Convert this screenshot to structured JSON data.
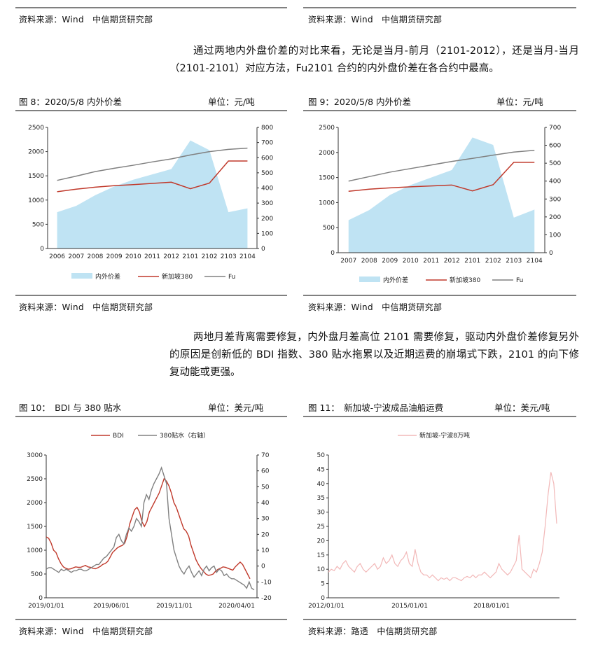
{
  "top_sources": {
    "left": "资料来源：Wind　中信期货研究部",
    "right": "资料来源：Wind　中信期货研究部"
  },
  "paragraph1": "通过两地内外盘价差的对比来看，无论是当月-前月（2101-2012），还是当月-当月（2101-2101）对应方法，Fu2101 合约的内外盘价差在各合约中最高。",
  "fig8": {
    "title": "图 8：2020/5/8 内外价差",
    "unit": "单位：元/吨",
    "source": "资料来源：Wind　中信期货研究部"
  },
  "fig9": {
    "title": "图 9：2020/5/8 内外价差",
    "unit": "单位：元/吨",
    "source": "资料来源：Wind　中信期货研究部"
  },
  "paragraph2": "两地月差背离需要修复，内外盘月差高位 2101 需要修复，驱动内外盘价差修复另外的原因是创新低的 BDI 指数、380 贴水拖累以及近期运费的崩塌式下跌，2101 的向下修复动能或更强。",
  "fig10": {
    "title": "图 10：　BDI 与 380 贴水",
    "unit": "单位：美元/吨",
    "source": "资料来源：Wind　中信期货研究部"
  },
  "fig11": {
    "title": "图 11：　新加坡-宁波成品油船运费",
    "unit": "单位：美元/吨",
    "source": "资料来源：路透　中信期货研究部"
  },
  "chart_data": [
    {
      "id": "fig8",
      "type": "area+line",
      "categories": [
        "2006",
        "2007",
        "2008",
        "2009",
        "2010",
        "2011",
        "2012",
        "2101",
        "2102",
        "2103",
        "2104"
      ],
      "series": [
        {
          "name": "内外价差",
          "axis": "left",
          "kind": "area",
          "color": "#bfe3f3",
          "values": [
            750,
            880,
            1100,
            1280,
            1420,
            1530,
            1640,
            2230,
            2030,
            750,
            830
          ]
        },
        {
          "name": "新加坡380",
          "axis": "right",
          "kind": "line",
          "color": "#c0392b",
          "values": [
            375,
            392,
            405,
            415,
            422,
            430,
            438,
            395,
            432,
            578,
            578
          ]
        },
        {
          "name": "Fu",
          "axis": "right",
          "kind": "line",
          "color": "#808080",
          "values": [
            450,
            478,
            508,
            530,
            550,
            572,
            592,
            618,
            640,
            655,
            663
          ]
        }
      ],
      "ylim_left": [
        0,
        2500
      ],
      "yticks_left": [
        0,
        500,
        1000,
        1500,
        2000,
        2500
      ],
      "ylim_right": [
        0,
        800
      ],
      "yticks_right": [
        0,
        100,
        200,
        300,
        400,
        500,
        600,
        700,
        800
      ],
      "legend": [
        "内外价差",
        "新加坡380",
        "Fu"
      ]
    },
    {
      "id": "fig9",
      "type": "area+line",
      "categories": [
        "2007",
        "2008",
        "2009",
        "2010",
        "2011",
        "2012",
        "2101",
        "2102",
        "2103",
        "2104"
      ],
      "series": [
        {
          "name": "内外价差",
          "axis": "left",
          "kind": "area",
          "color": "#bfe3f3",
          "values": [
            650,
            850,
            1150,
            1350,
            1500,
            1650,
            2300,
            2150,
            700,
            860
          ]
        },
        {
          "name": "新加坡380",
          "axis": "right",
          "kind": "line",
          "color": "#c0392b",
          "values": [
            343,
            355,
            362,
            368,
            373,
            378,
            345,
            380,
            505,
            505
          ]
        },
        {
          "name": "Fu",
          "axis": "right",
          "kind": "line",
          "color": "#808080",
          "values": [
            400,
            425,
            450,
            470,
            490,
            510,
            527,
            545,
            562,
            572
          ]
        }
      ],
      "ylim_left": [
        0,
        2500
      ],
      "yticks_left": [
        0,
        500,
        1000,
        1500,
        2000,
        2500
      ],
      "ylim_right": [
        0,
        700
      ],
      "yticks_right": [
        0,
        100,
        200,
        300,
        400,
        500,
        600,
        700
      ],
      "legend": [
        "内外价差",
        "新加坡380",
        "Fu"
      ]
    },
    {
      "id": "fig10",
      "type": "line",
      "x_ticks": [
        "2019/01/01",
        "2019/06/01",
        "2019/11/01",
        "2020/04/01"
      ],
      "series": [
        {
          "name": "BDI",
          "axis": "left",
          "color": "#c0392b",
          "values": [
            1280,
            1250,
            1150,
            1000,
            950,
            820,
            720,
            650,
            620,
            600,
            610,
            630,
            650,
            640,
            640,
            660,
            680,
            650,
            640,
            620,
            610,
            630,
            660,
            700,
            720,
            760,
            850,
            950,
            1000,
            1050,
            1080,
            1100,
            1150,
            1300,
            1550,
            1700,
            1850,
            1900,
            1800,
            1600,
            1500,
            1600,
            1800,
            1900,
            2000,
            2100,
            2200,
            2350,
            2500,
            2450,
            2350,
            2200,
            2000,
            1900,
            1750,
            1600,
            1450,
            1400,
            1300,
            1100,
            950,
            800,
            700,
            620,
            560,
            500,
            470,
            480,
            500,
            560,
            600,
            620,
            650,
            640,
            620,
            600,
            580,
            650,
            700,
            750,
            700,
            600,
            500,
            400
          ]
        },
        {
          "name": "380贴水（右轴）",
          "axis": "right",
          "color": "#808080",
          "values": [
            -2,
            -1,
            -1,
            -2,
            -3,
            -4,
            -2,
            -3,
            -2,
            -3,
            -4,
            -3,
            -3,
            -2,
            -2,
            -3,
            -3,
            -2,
            -1,
            0,
            1,
            1,
            3,
            5,
            6,
            8,
            10,
            12,
            18,
            20,
            16,
            14,
            20,
            24,
            22,
            25,
            30,
            28,
            25,
            40,
            45,
            42,
            48,
            52,
            55,
            58,
            62,
            57,
            52,
            30,
            20,
            10,
            5,
            0,
            -3,
            -5,
            -2,
            0,
            -4,
            -7,
            -5,
            -3,
            -6,
            -2,
            0,
            -3,
            -1,
            0,
            -4,
            -2,
            -3,
            -6,
            -5,
            -7,
            -8,
            -8,
            -9,
            -10,
            -11,
            -12,
            -14,
            -10,
            -14,
            -15
          ]
        }
      ],
      "ylim_left": [
        0,
        3000
      ],
      "yticks_left": [
        0,
        500,
        1000,
        1500,
        2000,
        2500,
        3000
      ],
      "ylim_right": [
        -20,
        70
      ],
      "yticks_right": [
        -20,
        -10,
        0,
        10,
        20,
        30,
        40,
        50,
        60,
        70
      ],
      "legend": [
        "BDI",
        "380贴水（右轴）"
      ]
    },
    {
      "id": "fig11",
      "type": "line",
      "x_ticks": [
        "2012/01/01",
        "2015/01/01",
        "2018/01/01"
      ],
      "series": [
        {
          "name": "新加坡-宁波8万吨",
          "color": "#f2b8b8",
          "values": [
            9,
            10,
            9.5,
            11,
            10,
            12,
            13,
            11,
            10,
            9,
            11,
            12,
            10,
            9,
            10,
            11,
            12,
            10,
            11,
            14,
            12,
            13,
            15,
            12,
            11,
            13,
            14,
            16,
            12,
            11,
            17,
            12,
            9,
            8,
            8,
            7,
            8,
            7,
            6,
            7,
            6.5,
            7,
            6,
            7,
            7,
            6.5,
            6,
            7,
            7.5,
            7,
            8,
            7,
            8,
            8,
            9,
            8,
            7,
            8,
            9,
            12,
            10,
            9,
            8,
            9,
            11,
            13,
            22,
            10,
            9,
            8,
            7,
            10,
            9,
            12,
            16,
            25,
            36,
            44,
            40,
            26
          ]
        }
      ],
      "ylim": [
        0,
        50
      ],
      "yticks": [
        0,
        5,
        10,
        15,
        20,
        25,
        30,
        35,
        40,
        45,
        50
      ],
      "legend": [
        "新加坡-宁波8万吨"
      ]
    }
  ]
}
